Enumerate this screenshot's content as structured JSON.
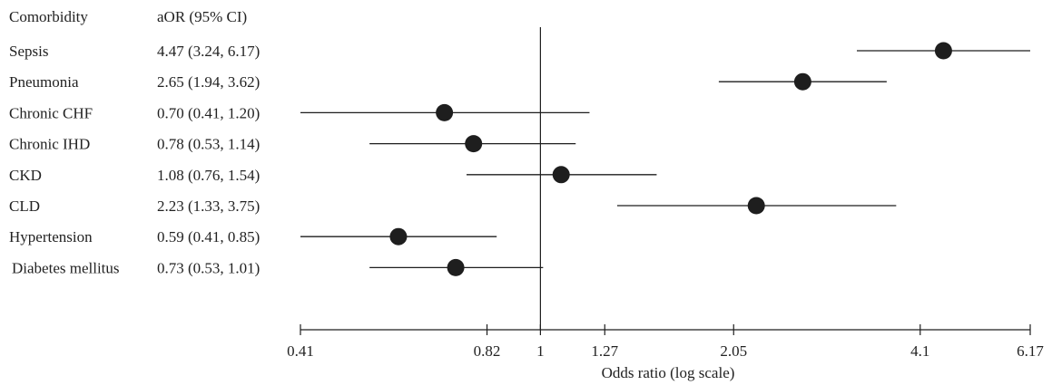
{
  "chart_data": {
    "type": "forest",
    "column_headers": {
      "label": "Comorbidity",
      "value": "aOR (95% CI)"
    },
    "rows": [
      {
        "label": "Sepsis",
        "ci_text": "4.47 (3.24, 6.17)",
        "aor": 4.47,
        "lower": 3.24,
        "upper": 6.17
      },
      {
        "label": "Pneumonia",
        "ci_text": "2.65 (1.94, 3.62)",
        "aor": 2.65,
        "lower": 1.94,
        "upper": 3.62
      },
      {
        "label": "Chronic CHF",
        "ci_text": "0.70 (0.41, 1.20)",
        "aor": 0.7,
        "lower": 0.41,
        "upper": 1.2
      },
      {
        "label": "Chronic IHD",
        "ci_text": "0.78 (0.53, 1.14)",
        "aor": 0.78,
        "lower": 0.53,
        "upper": 1.14
      },
      {
        "label": "CKD",
        "ci_text": "1.08 (0.76, 1.54)",
        "aor": 1.08,
        "lower": 0.76,
        "upper": 1.54
      },
      {
        "label": "CLD",
        "ci_text": "2.23 (1.33, 3.75)",
        "aor": 2.23,
        "lower": 1.33,
        "upper": 3.75
      },
      {
        "label": "Hypertension",
        "ci_text": "0.59 (0.41, 0.85)",
        "aor": 0.59,
        "lower": 0.41,
        "upper": 0.85
      },
      {
        "label": "Diabetes mellitus",
        "ci_text": "0.73 (0.53, 1.01)",
        "aor": 0.73,
        "lower": 0.53,
        "upper": 1.01
      }
    ],
    "xaxis": {
      "label": "Odds ratio (log scale)",
      "scale": "log",
      "range": [
        0.41,
        6.17
      ],
      "ticks": [
        {
          "value": 0.41,
          "label": "0.41"
        },
        {
          "value": 0.82,
          "label": "0.82"
        },
        {
          "value": 1,
          "label": "1"
        },
        {
          "value": 1.27,
          "label": "1.27"
        },
        {
          "value": 2.05,
          "label": "2.05"
        },
        {
          "value": 4.1,
          "label": "4.1"
        },
        {
          "value": 6.17,
          "label": "6.17"
        }
      ]
    },
    "reference_line": 1,
    "colors": {
      "marker": "#1e1e1e",
      "line": "#1e1e1e"
    }
  }
}
